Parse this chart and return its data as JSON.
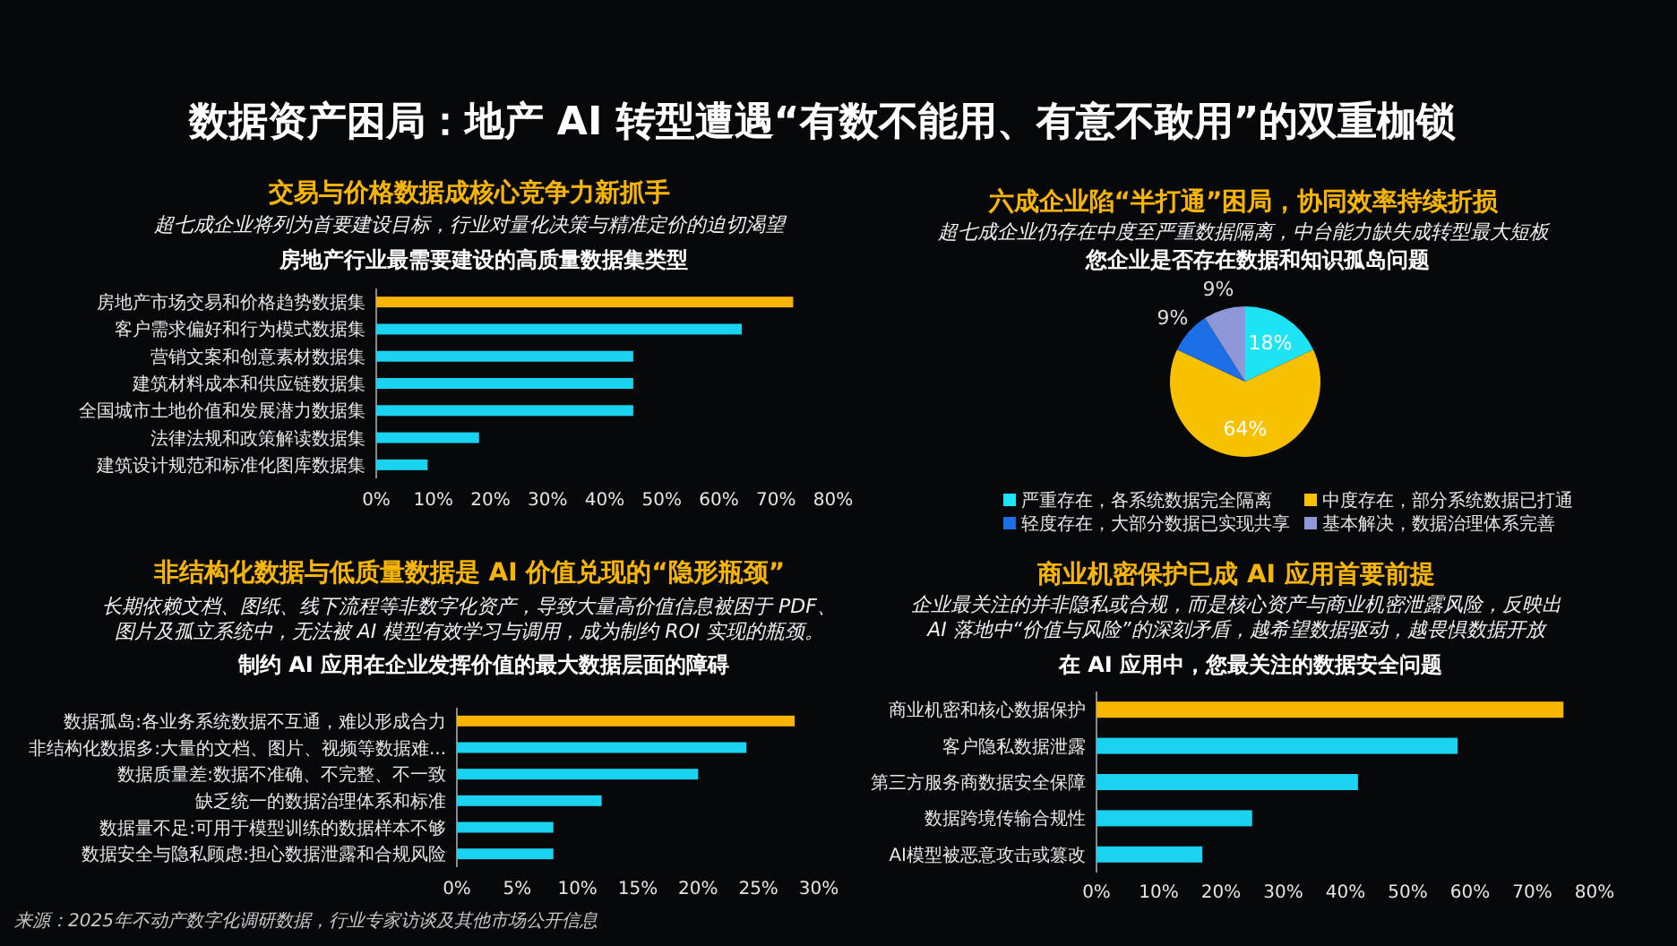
{
  "chart_data": [
    {
      "type": "other",
      "title": "数据资产困局：地产 AI 转型遭遇“有数不能用、有意不敢用”的双重枷锁",
      "annotations": [
        "来源：2025年不动产数字化调研数据，行业专家访谈及其他市场公开信息"
      ]
    },
    {
      "type": "bar",
      "orientation": "horizontal",
      "title": "交易与价格数据成核心竞争力新抓手",
      "subtitle": "超七成企业将列为首要建设目标，行业对量化决策与精准定价的迫切渴望",
      "annotations": [
        "房地产行业最需要建设的高质量数据集类型"
      ],
      "categories": [
        "房地产市场交易和价格趋势数据集",
        "客户需求偏好和行为模式数据集",
        "营销文案和创意素材数据集",
        "建筑材料成本和供应链数据集",
        "全国城市土地价值和发展潜力数据集",
        "法律法规和政策解读数据集",
        "建筑设计规范和标准化图库数据集"
      ],
      "values": [
        73,
        64,
        45,
        45,
        45,
        18,
        9
      ],
      "colors": [
        "#f7b500",
        "#19d3f0",
        "#19d3f0",
        "#19d3f0",
        "#19d3f0",
        "#19d3f0",
        "#19d3f0"
      ],
      "xlim": [
        0,
        80
      ],
      "xticks": [
        {
          "value": 0,
          "label": "0%"
        },
        {
          "value": 10,
          "label": "10%"
        },
        {
          "value": 20,
          "label": "20%"
        },
        {
          "value": 30,
          "label": "30%"
        },
        {
          "value": 40,
          "label": "40%"
        },
        {
          "value": 50,
          "label": "50%"
        },
        {
          "value": 60,
          "label": "60%"
        },
        {
          "value": 70,
          "label": "70%"
        },
        {
          "value": 80,
          "label": "80%"
        }
      ]
    },
    {
      "type": "pie",
      "title": "六成企业陷“半打通”困局，协同效率持续折损",
      "subtitle": "超七成企业仍存在中度至严重数据隔离，中台能力缺失成转型最大短板",
      "annotations": [
        "您企业是否存在数据和知识孤岛问题"
      ],
      "categories": [
        "严重存在，各系统数据完全隔离",
        "中度存在，部分系统数据已打通",
        "轻度存在，大部分数据已实现共享",
        "基本解决，数据治理体系完善"
      ],
      "values": [
        18,
        64,
        9,
        9
      ],
      "colors": [
        "#1ee3f5",
        "#f7c100",
        "#1d6fe8",
        "#8e98d8"
      ],
      "value_labels": [
        "18%",
        "64%",
        "9%",
        "9%"
      ],
      "legend": "bottom"
    },
    {
      "type": "bar",
      "orientation": "horizontal",
      "title": "非结构化数据与低质量数据是 AI 价值兑现的“隐形瓶颈”",
      "subtitle": "长期依赖文档、图纸、线下流程等非数字化资产，导致大量高价值信息被困于 PDF、图片及孤立系统中，无法被 AI 模型有效学习与调用，成为制约 ROI 实现的瓶颈。",
      "annotations": [
        "制约 AI 应用在企业发挥价值的最大数据层面的障碍"
      ],
      "categories": [
        "数据孤岛:各业务系统数据不互通，难以形成合力",
        "非结构化数据多:大量的文档、图片、视频等数据难...",
        "数据质量差:数据不准确、不完整、不一致",
        "缺乏统一的数据治理体系和标准",
        "数据量不足:可用于模型训练的数据样本不够",
        "数据安全与隐私顾虑:担心数据泄露和合规风险"
      ],
      "values": [
        28,
        24,
        20,
        12,
        8,
        8
      ],
      "colors": [
        "#f7b500",
        "#19d3f0",
        "#19d3f0",
        "#19d3f0",
        "#19d3f0",
        "#19d3f0"
      ],
      "xlim": [
        0,
        30
      ],
      "xticks": [
        {
          "value": 0,
          "label": "0%"
        },
        {
          "value": 5,
          "label": "5%"
        },
        {
          "value": 10,
          "label": "10%"
        },
        {
          "value": 15,
          "label": "15%"
        },
        {
          "value": 20,
          "label": "20%"
        },
        {
          "value": 25,
          "label": "25%"
        },
        {
          "value": 30,
          "label": "30%"
        }
      ]
    },
    {
      "type": "bar",
      "orientation": "horizontal",
      "title": "商业机密保护已成 AI 应用首要前提",
      "subtitle": "企业最关注的并非隐私或合规，而是核心资产与商业机密泄露风险，反映出AI 落地中“价值与风险”的深刻矛盾，越希望数据驱动，越畏惧数据开放",
      "annotations": [
        "在 AI 应用中，您最关注的数据安全问题"
      ],
      "categories": [
        "商业机密和核心数据保护",
        "客户隐私数据泄露",
        "第三方服务商数据安全保障",
        "数据跨境传输合规性",
        "AI模型被恶意攻击或篡改"
      ],
      "values": [
        75,
        58,
        42,
        25,
        17
      ],
      "colors": [
        "#f7b500",
        "#19d3f0",
        "#19d3f0",
        "#19d3f0",
        "#19d3f0"
      ],
      "xlim": [
        0,
        80
      ],
      "xticks": [
        {
          "value": 0,
          "label": "0%"
        },
        {
          "value": 10,
          "label": "10%"
        },
        {
          "value": 20,
          "label": "20%"
        },
        {
          "value": 30,
          "label": "30%"
        },
        {
          "value": 40,
          "label": "40%"
        },
        {
          "value": 50,
          "label": "50%"
        },
        {
          "value": 60,
          "label": "60%"
        },
        {
          "value": 70,
          "label": "70%"
        },
        {
          "value": 80,
          "label": "80%"
        }
      ]
    }
  ]
}
